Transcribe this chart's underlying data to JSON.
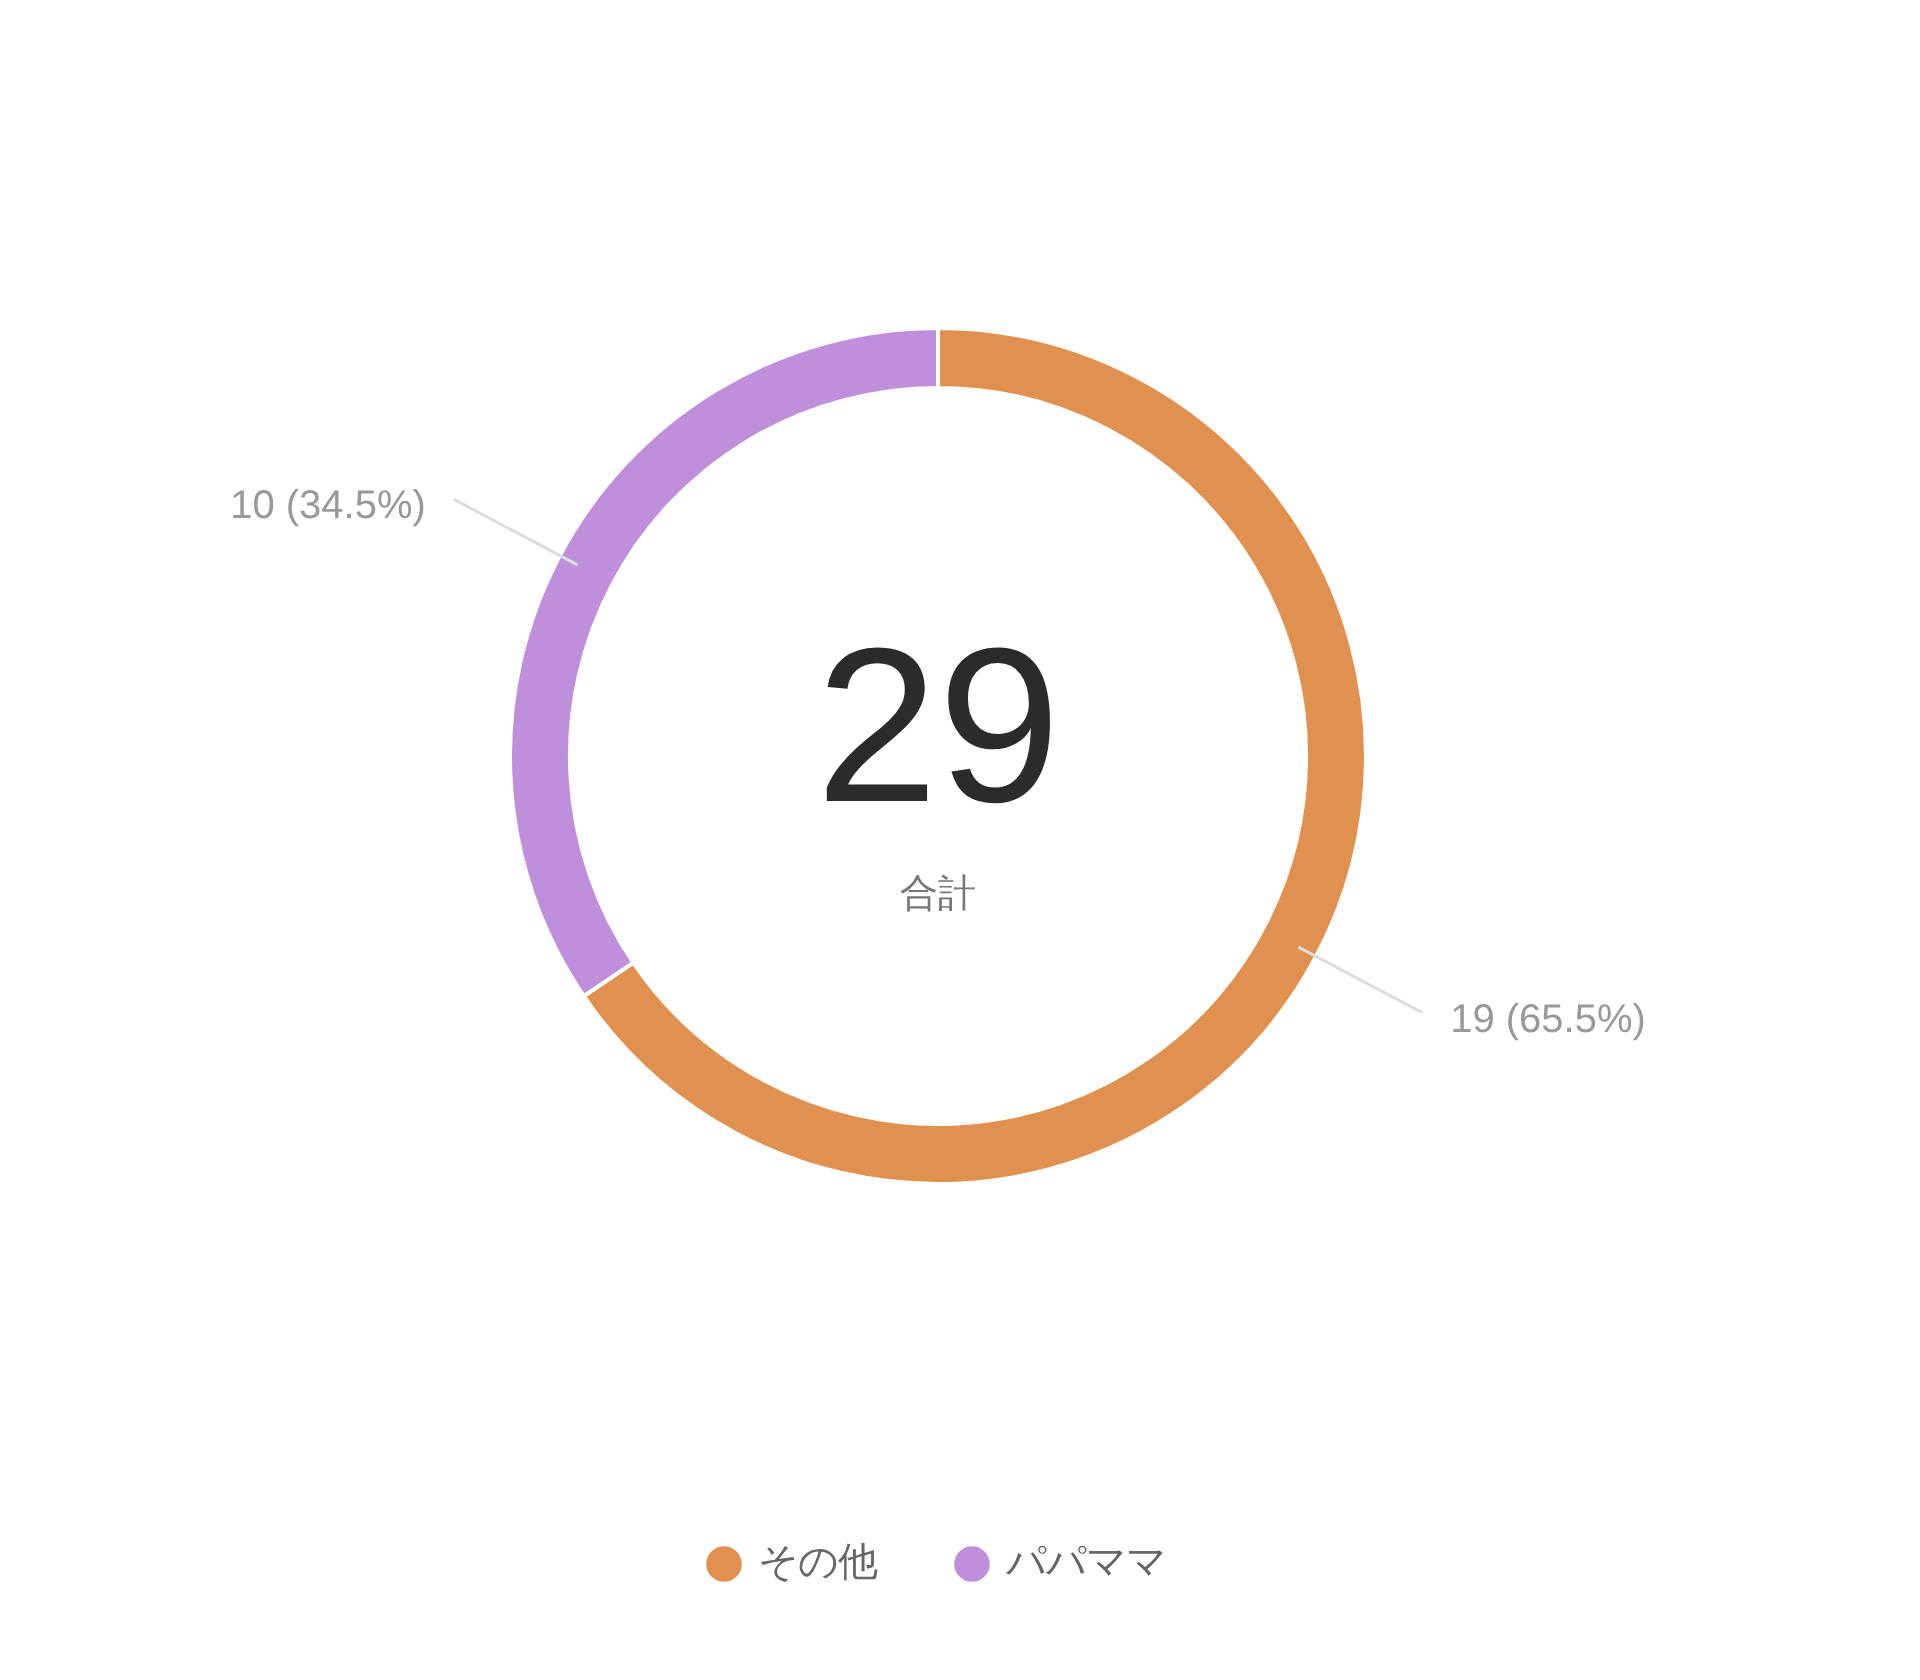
{
  "chart_data": {
    "type": "donut",
    "categories": [
      "その他",
      "パパママ"
    ],
    "values": [
      19,
      10
    ],
    "colors": [
      "#e0914f",
      "#c08fdc"
    ],
    "value_labels": [
      "19 (65.5%)",
      "10 (34.5%)"
    ],
    "annotations": [
      "29",
      "合計"
    ],
    "legend": "bottom"
  }
}
